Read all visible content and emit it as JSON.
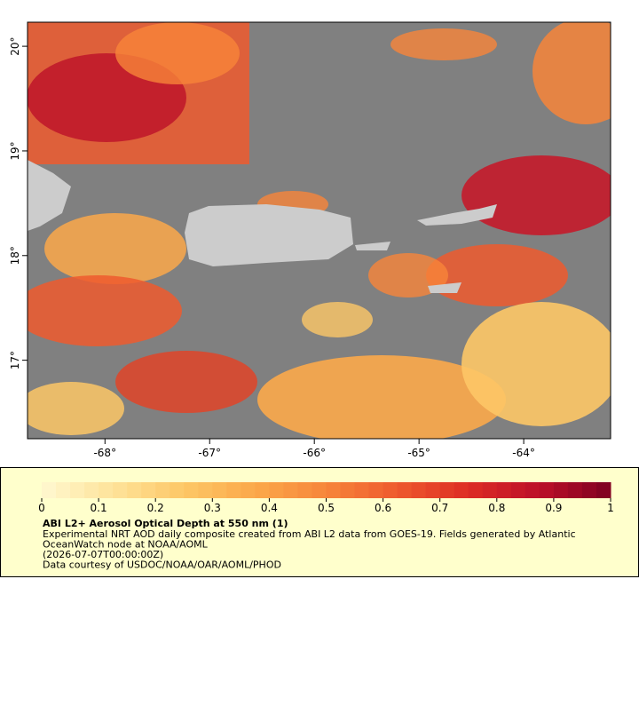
{
  "map": {
    "xlim": [
      -68.74,
      -63.17
    ],
    "ylim": [
      16.25,
      20.23
    ],
    "xticks": [
      {
        "value": -68,
        "label": "-68°"
      },
      {
        "value": -67,
        "label": "-67°"
      },
      {
        "value": -66,
        "label": "-66°"
      },
      {
        "value": -65,
        "label": "-65°"
      },
      {
        "value": -64,
        "label": "-64°"
      }
    ],
    "yticks": [
      {
        "value": 17,
        "label": "17°"
      },
      {
        "value": 18,
        "label": "18°"
      },
      {
        "value": 19,
        "label": "19°"
      },
      {
        "value": 20,
        "label": "20°"
      }
    ]
  },
  "colorbar": {
    "lim": [
      0,
      1
    ],
    "ticks": [
      0,
      0.1,
      0.2,
      0.3,
      0.4,
      0.5,
      0.6,
      0.7,
      0.8,
      0.9,
      1
    ],
    "colors": [
      "#fff8d0",
      "#fee39a",
      "#fdc766",
      "#fba84a",
      "#f7853a",
      "#ee5a2e",
      "#dd2c24",
      "#bc1029",
      "#7d0020"
    ]
  },
  "caption": {
    "title": "ABI L2+ Aerosol Optical Depth at 550 nm (1)",
    "lines": [
      "Experimental NRT AOD daily composite created from ABI L2 data from GOES-19. Fields generated by Atlantic",
      "OceanWatch node at NOAA/AOML",
      "(2026-07-07T00:00:00Z)",
      "Data courtesy of USDOC/NOAA/OAR/AOML/PHOD"
    ]
  }
}
